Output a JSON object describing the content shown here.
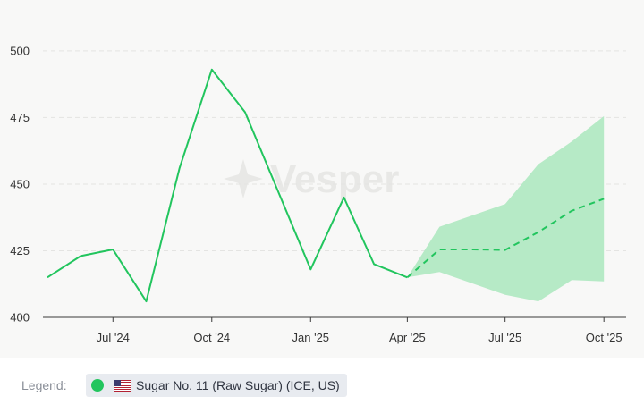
{
  "chart_data": {
    "type": "line",
    "title": "",
    "xlabel": "",
    "ylabel": "",
    "watermark": "Vesper",
    "ylim": [
      400,
      505
    ],
    "yticks": [
      400,
      425,
      450,
      475,
      500
    ],
    "xlim": [
      "2024-05-01",
      "2025-10-15"
    ],
    "xticks": [
      {
        "date": "2024-07-01",
        "label": "Jul '24"
      },
      {
        "date": "2024-10-01",
        "label": "Oct '24"
      },
      {
        "date": "2025-01-01",
        "label": "Jan '25"
      },
      {
        "date": "2025-04-01",
        "label": "Apr '25"
      },
      {
        "date": "2025-07-01",
        "label": "Jul '25"
      },
      {
        "date": "2025-10-01",
        "label": "Oct '25"
      }
    ],
    "grid": true,
    "series": [
      {
        "name": "Sugar No. 11 (Raw Sugar) (ICE, US)",
        "style": "solid",
        "color": "#22c55e",
        "points": [
          {
            "x": "2024-05-01",
            "y": 415
          },
          {
            "x": "2024-06-01",
            "y": 423
          },
          {
            "x": "2024-07-01",
            "y": 425.5
          },
          {
            "x": "2024-08-01",
            "y": 406
          },
          {
            "x": "2024-09-01",
            "y": 456
          },
          {
            "x": "2024-10-01",
            "y": 493
          },
          {
            "x": "2024-11-01",
            "y": 477
          },
          {
            "x": "2024-12-01",
            "y": 448
          },
          {
            "x": "2025-01-01",
            "y": 418
          },
          {
            "x": "2025-02-01",
            "y": 445
          },
          {
            "x": "2025-03-01",
            "y": 420
          },
          {
            "x": "2025-04-01",
            "y": 415
          }
        ]
      },
      {
        "name": "Sugar No. 11 (Raw Sugar) (ICE, US)",
        "style": "dashed",
        "color": "#22c55e",
        "points": [
          {
            "x": "2025-04-01",
            "y": 415
          },
          {
            "x": "2025-05-01",
            "y": 425.5
          },
          {
            "x": "2025-06-01",
            "y": 425.5
          },
          {
            "x": "2025-07-01",
            "y": 425.3
          },
          {
            "x": "2025-08-01",
            "y": 432
          },
          {
            "x": "2025-09-01",
            "y": 440
          },
          {
            "x": "2025-10-01",
            "y": 444.5
          }
        ]
      }
    ],
    "band": {
      "color": "#b6eac6",
      "points": [
        {
          "x": "2025-04-01",
          "upper": 415,
          "lower": 415
        },
        {
          "x": "2025-05-01",
          "upper": 434,
          "lower": 417
        },
        {
          "x": "2025-07-01",
          "upper": 442.5,
          "lower": 408.5
        },
        {
          "x": "2025-08-01",
          "upper": 457.5,
          "lower": 406
        },
        {
          "x": "2025-09-01",
          "upper": 466,
          "lower": 414
        },
        {
          "x": "2025-10-01",
          "upper": 475.5,
          "lower": 413.5
        }
      ]
    }
  },
  "legend": {
    "label": "Legend:",
    "items": [
      {
        "text": "Sugar No. 11 (Raw Sugar) (ICE, US)",
        "color": "#22c55e",
        "flag": "us-flag-icon"
      }
    ]
  }
}
